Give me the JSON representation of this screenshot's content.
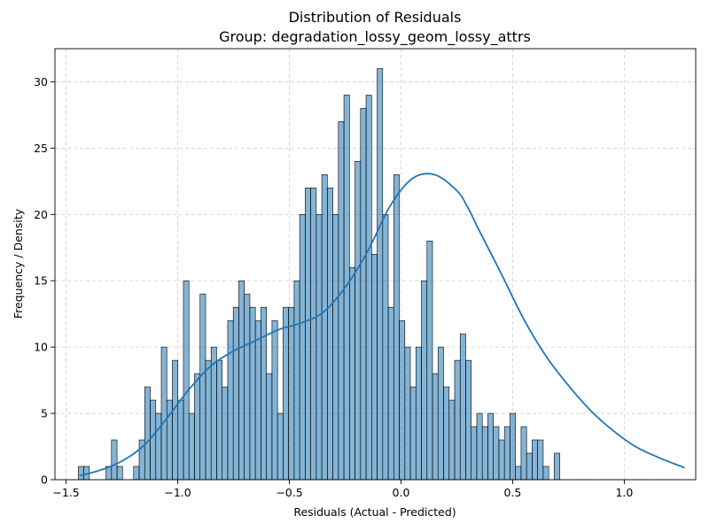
{
  "chart_data": {
    "type": "bar",
    "title": "Distribution of Residuals",
    "subtitle": "Group: degradation_lossy_geom_lossy_attrs",
    "xlabel": "Residuals (Actual - Predicted)",
    "ylabel": "Frequency / Density",
    "xlim": [
      -1.55,
      1.32
    ],
    "ylim": [
      0,
      32.5
    ],
    "xticks": [
      -1.5,
      -1.0,
      -0.5,
      0.0,
      0.5,
      1.0
    ],
    "xtick_labels": [
      "−1.5",
      "−1.0",
      "−0.5",
      "0.0",
      "0.5",
      "1.0"
    ],
    "yticks": [
      0,
      5,
      10,
      15,
      20,
      25,
      30
    ],
    "ytick_labels": [
      "0",
      "5",
      "10",
      "15",
      "20",
      "25",
      "30"
    ],
    "grid": true,
    "bin_start": -1.4455,
    "bin_width": 0.02479,
    "counts": [
      1,
      1,
      0,
      0,
      0,
      1,
      3,
      1,
      0,
      0,
      1,
      3,
      7,
      6,
      5,
      10,
      6,
      9,
      6,
      15,
      5,
      8,
      14,
      9,
      10,
      9,
      7,
      12,
      13,
      15,
      14,
      13,
      12,
      13,
      8,
      12,
      5,
      13,
      13,
      15,
      20,
      22,
      22,
      20,
      23,
      22,
      20,
      27,
      29,
      16,
      24,
      28,
      29,
      17,
      31,
      20,
      13,
      23,
      12,
      10,
      7,
      10,
      15,
      18,
      8,
      10,
      7,
      6,
      9,
      11,
      9,
      4,
      5,
      4,
      5,
      4,
      3,
      4,
      5,
      1,
      4,
      2,
      3,
      3,
      1,
      0,
      2
    ],
    "kde": {
      "x": [
        -1.44,
        -1.35,
        -1.25,
        -1.15,
        -1.05,
        -0.95,
        -0.85,
        -0.75,
        -0.65,
        -0.55,
        -0.45,
        -0.35,
        -0.25,
        -0.15,
        -0.05,
        0.05,
        0.15,
        0.25,
        0.3,
        0.35,
        0.45,
        0.55,
        0.65,
        0.75,
        0.85,
        0.95,
        1.05,
        1.15,
        1.27
      ],
      "y": [
        0.3,
        0.7,
        1.4,
        2.6,
        4.6,
        6.8,
        8.6,
        9.7,
        10.5,
        11.3,
        11.8,
        12.6,
        14.5,
        17.2,
        20.6,
        22.7,
        23.0,
        21.8,
        20.5,
        18.8,
        15.5,
        12.1,
        9.3,
        7.1,
        5.2,
        3.7,
        2.5,
        1.7,
        0.9
      ]
    }
  }
}
